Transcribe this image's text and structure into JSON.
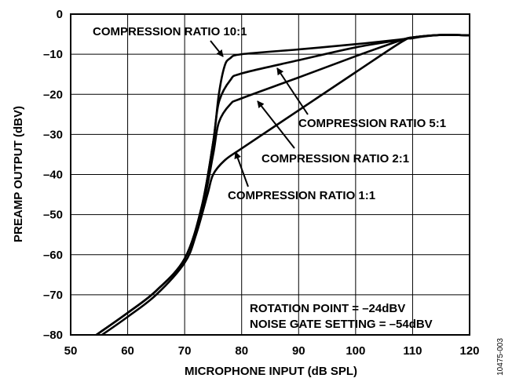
{
  "chart_data": {
    "type": "line",
    "xlabel": "MICROPHONE INPUT (dB SPL)",
    "ylabel": "PREAMP OUTPUT (dBV)",
    "xlim": [
      50,
      120
    ],
    "ylim": [
      -80,
      0
    ],
    "xticks": [
      50,
      60,
      70,
      80,
      90,
      100,
      110,
      120
    ],
    "yticks": [
      0,
      -10,
      -20,
      -30,
      -40,
      -50,
      -60,
      -70,
      -80
    ],
    "xtick_labels": [
      "50",
      "60",
      "70",
      "80",
      "90",
      "100",
      "110",
      "120"
    ],
    "ytick_labels": [
      "0",
      "–10",
      "–20",
      "–30",
      "–40",
      "–50",
      "–60",
      "–70",
      "–80"
    ],
    "grid": true,
    "series": [
      {
        "name": "COMPRESSION RATIO 10:1",
        "points": [
          [
            54.5,
            -80
          ],
          [
            60,
            -74.5
          ],
          [
            65,
            -69
          ],
          [
            70,
            -61
          ],
          [
            73,
            -48
          ],
          [
            75,
            -32
          ],
          [
            76,
            -20
          ],
          [
            77,
            -13
          ],
          [
            78,
            -11
          ],
          [
            80,
            -10
          ],
          [
            90,
            -8.8
          ],
          [
            100,
            -7.5
          ],
          [
            108,
            -6.3
          ],
          [
            110,
            -5.8
          ],
          [
            115,
            -5.2
          ],
          [
            120,
            -5.3
          ]
        ]
      },
      {
        "name": "COMPRESSION RATIO 5:1",
        "points": [
          [
            54.5,
            -80
          ],
          [
            60,
            -74.5
          ],
          [
            65,
            -69
          ],
          [
            70,
            -61
          ],
          [
            73,
            -48
          ],
          [
            75,
            -32
          ],
          [
            76,
            -22
          ],
          [
            78,
            -16.5
          ],
          [
            80,
            -14.8
          ],
          [
            90,
            -11.5
          ],
          [
            100,
            -8.3
          ],
          [
            108,
            -6.4
          ],
          [
            110,
            -5.8
          ],
          [
            115,
            -5.2
          ],
          [
            120,
            -5.3
          ]
        ]
      },
      {
        "name": "COMPRESSION RATIO 2:1",
        "points": [
          [
            54.5,
            -80
          ],
          [
            60,
            -74.5
          ],
          [
            65,
            -69
          ],
          [
            70,
            -61
          ],
          [
            73,
            -49
          ],
          [
            75,
            -35
          ],
          [
            76,
            -27
          ],
          [
            78,
            -22.5
          ],
          [
            80,
            -21
          ],
          [
            90,
            -15.8
          ],
          [
            100,
            -10.5
          ],
          [
            108,
            -6.5
          ],
          [
            110,
            -5.8
          ],
          [
            115,
            -5.2
          ],
          [
            120,
            -5.3
          ]
        ]
      },
      {
        "name": "COMPRESSION RATIO 1:1",
        "points": [
          [
            55.5,
            -80
          ],
          [
            60,
            -75.5
          ],
          [
            65,
            -70
          ],
          [
            70,
            -62
          ],
          [
            72,
            -55
          ],
          [
            74,
            -45
          ],
          [
            75,
            -40
          ],
          [
            77,
            -36.5
          ],
          [
            80,
            -33.5
          ],
          [
            90,
            -24
          ],
          [
            100,
            -14.5
          ],
          [
            108,
            -7
          ],
          [
            110,
            -6
          ],
          [
            115,
            -5.2
          ],
          [
            120,
            -5.3
          ]
        ]
      }
    ],
    "labels": [
      {
        "text": "COMPRESSION RATIO 10:1"
      },
      {
        "text": "COMPRESSION RATIO 5:1"
      },
      {
        "text": "COMPRESSION RATIO 2:1"
      },
      {
        "text": "COMPRESSION RATIO 1:1"
      }
    ],
    "annotations": [
      "ROTATION POINT = –24dBV",
      "NOISE GATE SETTING = –54dBV"
    ],
    "figure_id": "10475-003"
  }
}
